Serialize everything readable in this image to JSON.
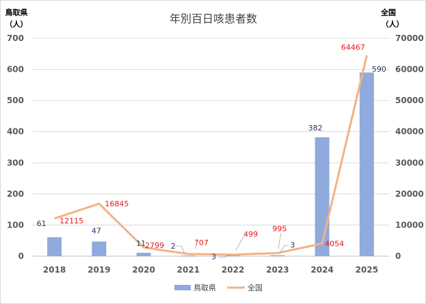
{
  "chart_data": {
    "type": "bar+line",
    "title": "年別百日咳患者数",
    "categories": [
      "2018",
      "2019",
      "2020",
      "2021",
      "2022",
      "2023",
      "2024",
      "2025"
    ],
    "series": [
      {
        "name": "鳥取県",
        "kind": "bar",
        "axis": "left",
        "color": "#8faadc",
        "values": [
          61,
          47,
          11,
          2,
          3,
          3,
          382,
          590
        ]
      },
      {
        "name": "全国",
        "kind": "line",
        "axis": "right",
        "color": "#f4b183",
        "label_color": "#e8151b",
        "values": [
          12115,
          16845,
          2799,
          707,
          499,
          995,
          4054,
          64467
        ]
      }
    ],
    "y_left": {
      "title_line1": "鳥取県",
      "title_line2": "（人）",
      "lim": [
        0,
        700
      ],
      "ticks": [
        0,
        100,
        200,
        300,
        400,
        500,
        600,
        700
      ]
    },
    "y_right": {
      "title_line1": "全国",
      "title_line2": "（人）",
      "lim": [
        0,
        70000
      ],
      "ticks": [
        0,
        10000,
        20000,
        30000,
        40000,
        50000,
        60000,
        70000
      ]
    },
    "grid": true,
    "legend_position": "bottom"
  }
}
